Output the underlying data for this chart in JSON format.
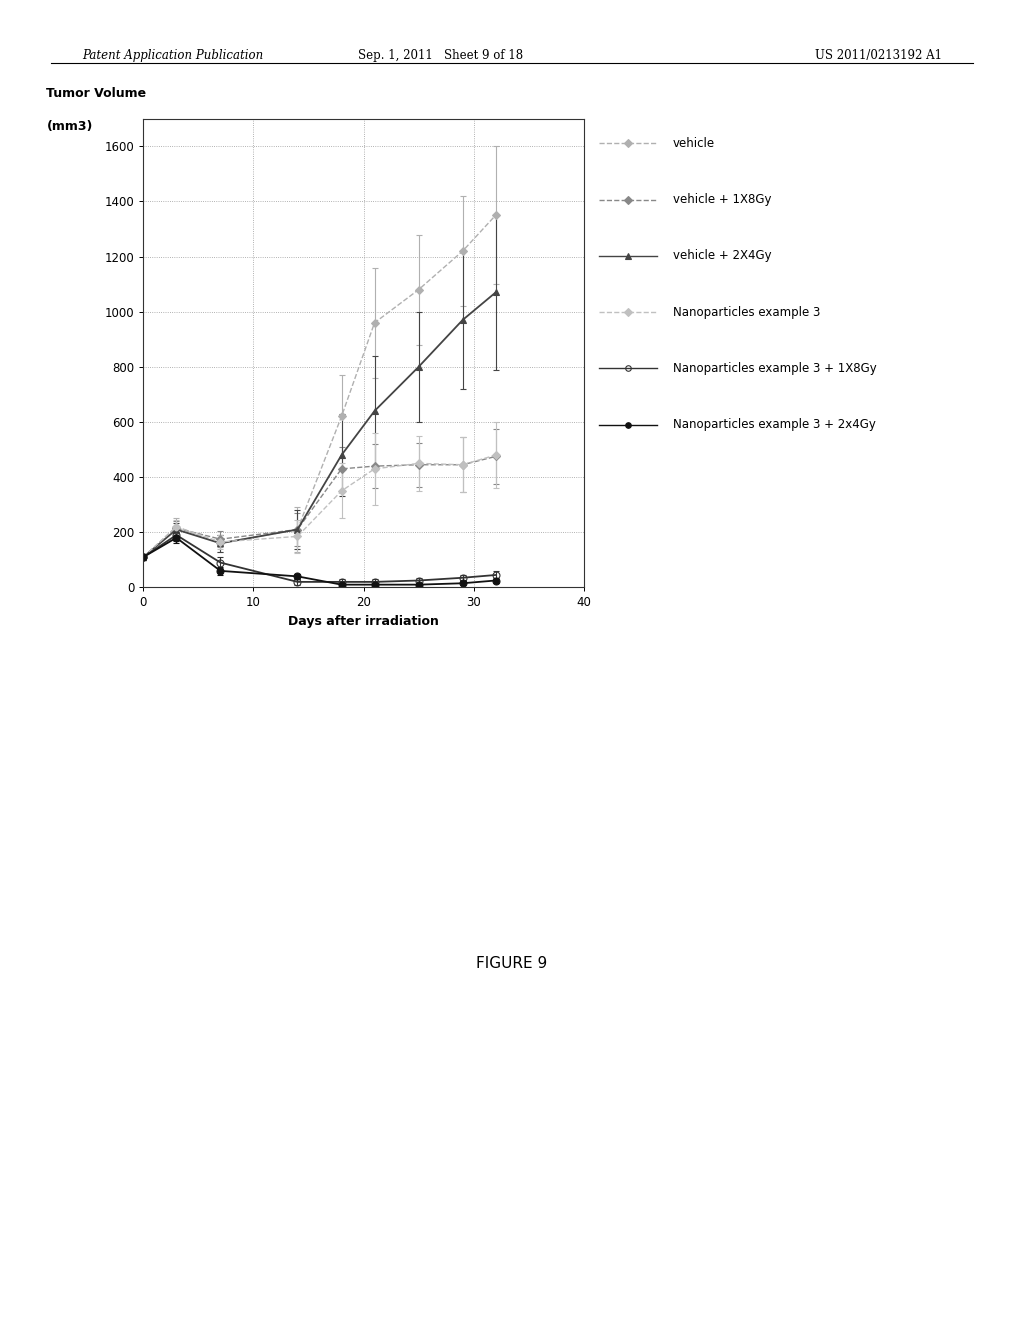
{
  "title_ylabel1": "Tumor Volume",
  "title_ylabel2": "(mm3)",
  "xlabel": "Days after irradiation",
  "figure_caption": "FIGURE 9",
  "header_left": "Patent Application Publication",
  "header_mid": "Sep. 1, 2011   Sheet 9 of 18",
  "header_right": "US 2011/0213192 A1",
  "xlim": [
    0,
    40
  ],
  "ylim": [
    0,
    1700
  ],
  "yticks": [
    0,
    200,
    400,
    600,
    800,
    1000,
    1200,
    1400,
    1600
  ],
  "xticks": [
    0,
    10,
    20,
    30,
    40
  ],
  "series": [
    {
      "label": "vehicle",
      "color": "#b0b0b0",
      "marker": "D",
      "markersize": 4,
      "linewidth": 1.0,
      "linestyle": "--",
      "fillstyle": "full",
      "x": [
        0,
        3,
        7,
        14,
        18,
        21,
        25,
        29,
        32
      ],
      "y": [
        110,
        220,
        160,
        210,
        620,
        960,
        1080,
        1220,
        1350
      ],
      "yerr": [
        10,
        30,
        30,
        80,
        150,
        200,
        200,
        200,
        250
      ]
    },
    {
      "label": "vehicle + 1X8Gy",
      "color": "#888888",
      "marker": "D",
      "markersize": 4,
      "linewidth": 1.0,
      "linestyle": "--",
      "fillstyle": "full",
      "x": [
        0,
        3,
        7,
        14,
        18,
        21,
        25,
        29,
        32
      ],
      "y": [
        110,
        215,
        175,
        210,
        430,
        440,
        445,
        445,
        475
      ],
      "yerr": [
        10,
        25,
        30,
        60,
        80,
        80,
        80,
        100,
        100
      ]
    },
    {
      "label": "vehicle + 2X4Gy",
      "color": "#444444",
      "marker": "^",
      "markersize": 5,
      "linewidth": 1.3,
      "linestyle": "-",
      "fillstyle": "full",
      "x": [
        0,
        3,
        7,
        14,
        18,
        21,
        25,
        29,
        32
      ],
      "y": [
        110,
        210,
        160,
        210,
        480,
        640,
        800,
        970,
        1070
      ],
      "yerr": [
        10,
        25,
        30,
        70,
        150,
        200,
        200,
        250,
        280
      ]
    },
    {
      "label": "Nanoparticles example 3",
      "color": "#c0c0c0",
      "marker": "D",
      "markersize": 4,
      "linewidth": 1.0,
      "linestyle": "--",
      "fillstyle": "full",
      "x": [
        0,
        3,
        7,
        14,
        18,
        21,
        25,
        29,
        32
      ],
      "y": [
        110,
        220,
        165,
        185,
        350,
        430,
        450,
        445,
        480
      ],
      "yerr": [
        10,
        25,
        25,
        60,
        100,
        130,
        100,
        100,
        120
      ]
    },
    {
      "label": "Nanoparticles example 3 + 1X8Gy",
      "color": "#333333",
      "marker": "o",
      "markersize": 5,
      "linewidth": 1.3,
      "linestyle": "-",
      "fillstyle": "none",
      "x": [
        0,
        3,
        7,
        14,
        18,
        21,
        25,
        29,
        32
      ],
      "y": [
        110,
        190,
        90,
        20,
        20,
        20,
        25,
        35,
        45
      ],
      "yerr": [
        10,
        20,
        20,
        10,
        10,
        10,
        10,
        10,
        15
      ]
    },
    {
      "label": "Nanoparticles example 3 + 2x4Gy",
      "color": "#111111",
      "marker": "o",
      "markersize": 5,
      "linewidth": 1.3,
      "linestyle": "-",
      "fillstyle": "full",
      "x": [
        0,
        3,
        7,
        14,
        18,
        21,
        25,
        29,
        32
      ],
      "y": [
        110,
        180,
        60,
        40,
        10,
        10,
        10,
        15,
        25
      ],
      "yerr": [
        10,
        20,
        15,
        10,
        5,
        5,
        5,
        5,
        10
      ]
    }
  ],
  "bg_color": "#ffffff",
  "grid_color": "#999999",
  "grid_linestyle": ":"
}
